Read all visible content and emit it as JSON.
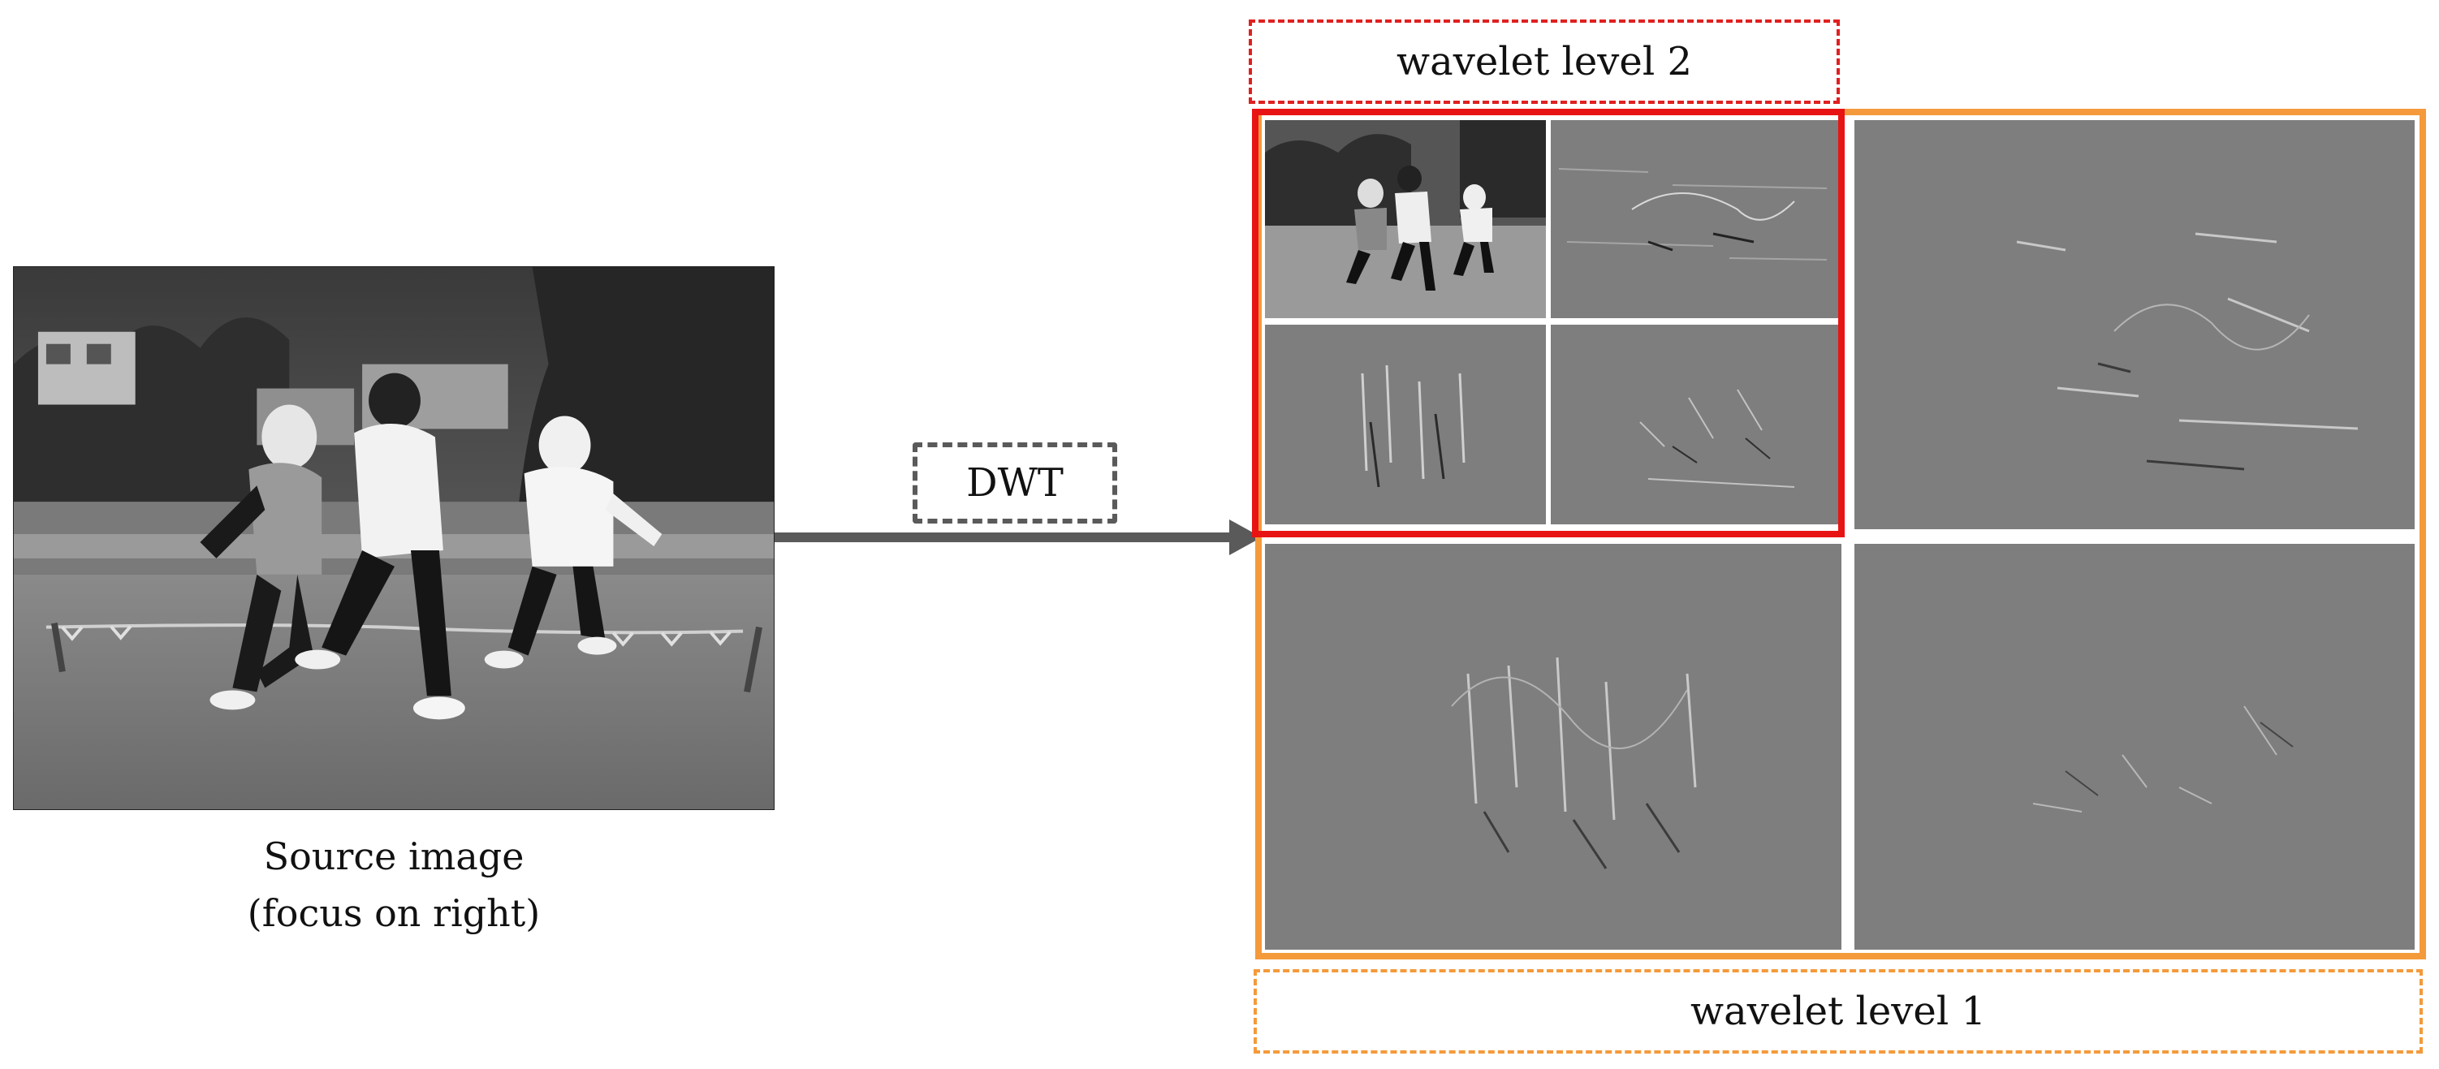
{
  "source": {
    "caption_line1": "Source image",
    "caption_line2": "(focus on right)"
  },
  "transform": {
    "label": "DWT"
  },
  "wavelet": {
    "level2_label": "wavelet level 2",
    "level1_label": "wavelet level 1"
  },
  "colors": {
    "level2_frame": "#e81414",
    "level1_frame": "#f49a3b",
    "arrow": "#5a5a5a"
  }
}
